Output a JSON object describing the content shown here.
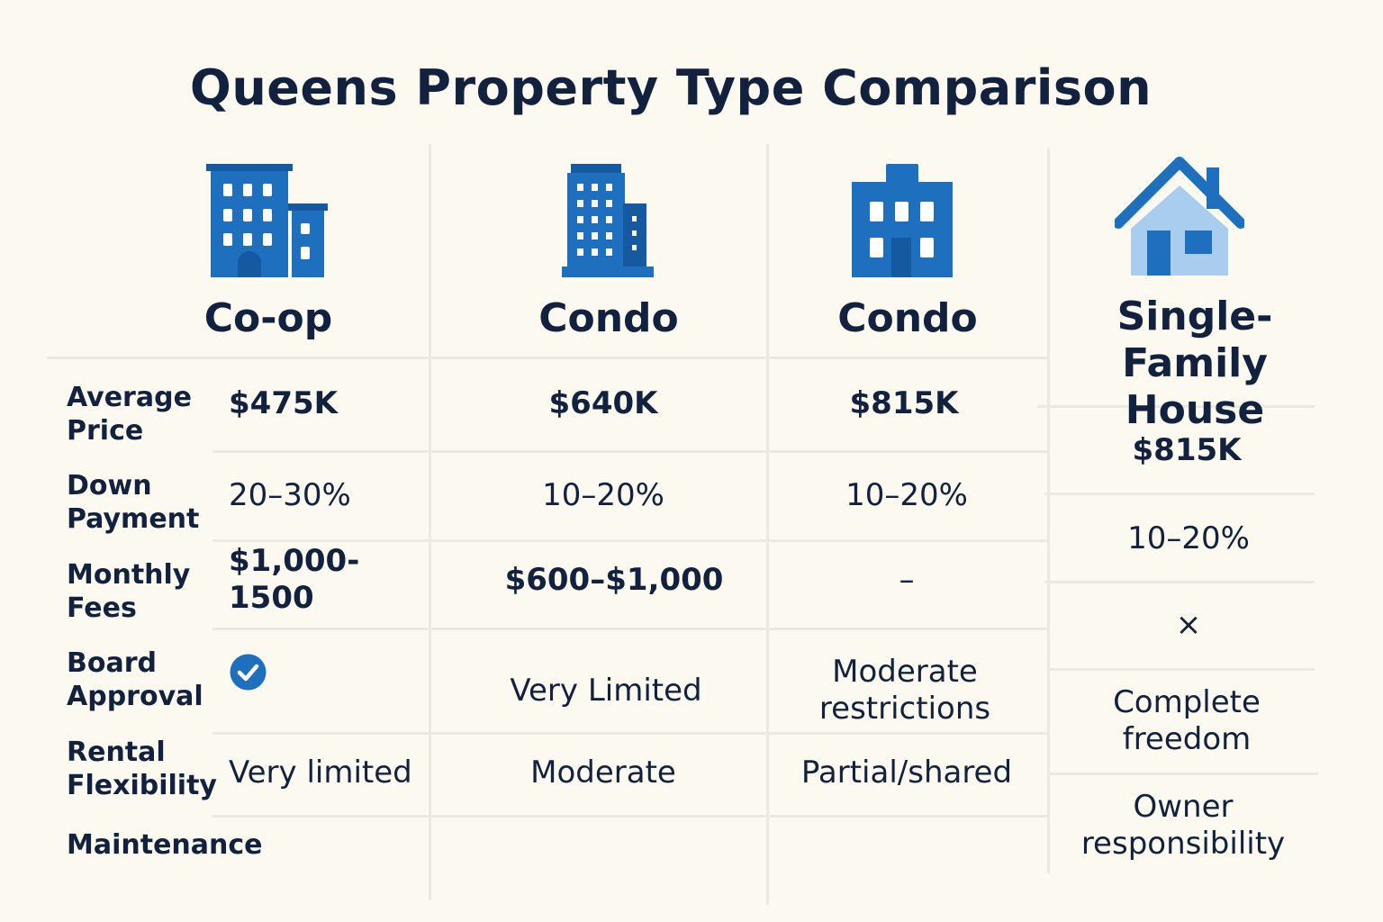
{
  "title": "Queens Property Type Comparison",
  "colors": {
    "icon_blue": "#1e6fbd",
    "icon_dark": "#1559a0",
    "house_light": "#a9cdee",
    "text": "#12213d",
    "grid": "#ece9df"
  },
  "columns": [
    {
      "heading": "Co-op",
      "icon": "apartment-building-icon"
    },
    {
      "heading": "Condo",
      "icon": "high-rise-building-icon"
    },
    {
      "heading": "Condo",
      "icon": "mid-rise-building-icon"
    },
    {
      "heading": "Single-Family House",
      "icon": "house-icon"
    }
  ],
  "rows": [
    {
      "label": "Average Price",
      "values": [
        "$475K",
        "$640K",
        "$815K",
        "$815K"
      ]
    },
    {
      "label": "Down Payment",
      "values": [
        "20–30%",
        "10–20%",
        "10–20%",
        "10–20%"
      ]
    },
    {
      "label": "Monthly Fees",
      "values": [
        "$1,000-1500",
        "$600–$1,000",
        "–",
        "×"
      ]
    },
    {
      "label": "Board Approval",
      "values": [
        "checkmark-icon",
        "Very Limited",
        "Moderate restrictions",
        "Complete freedom"
      ]
    },
    {
      "label": "Rental Flexibility",
      "values": [
        "Very limited",
        "Moderate",
        "Partial/shared",
        "Owner responsibility"
      ]
    },
    {
      "label": "Maintenance",
      "values": [
        "",
        "",
        "",
        ""
      ]
    }
  ]
}
